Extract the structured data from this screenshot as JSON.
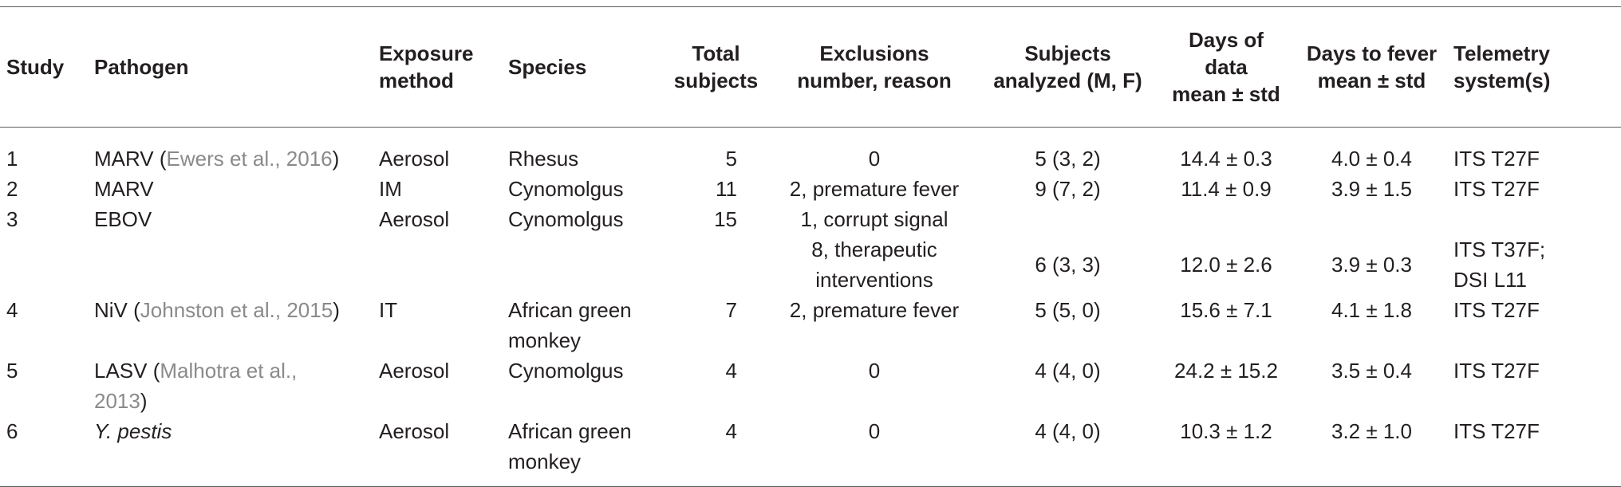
{
  "headers": {
    "study": [
      "Study"
    ],
    "pathogen": [
      "Pathogen"
    ],
    "exposure": [
      "Exposure",
      "method"
    ],
    "species": [
      "Species"
    ],
    "total": [
      "Total",
      "subjects"
    ],
    "exclusions": [
      "Exclusions",
      "number, reason"
    ],
    "subjects": [
      "Subjects",
      "analyzed (M, F)"
    ],
    "days": [
      "Days of",
      "data",
      "mean ± std"
    ],
    "fever": [
      "Days to fever",
      "mean ± std"
    ],
    "telemetry": [
      "Telemetry",
      "system(s)"
    ]
  },
  "rows": [
    {
      "study": "1",
      "pathogen": "MARV (",
      "pathogen_cite": "Ewers et al., 2016",
      "pathogen_tail": ")",
      "exposure": "Aerosol",
      "species": [
        "Rhesus"
      ],
      "total": "5",
      "exclusions": [
        "0"
      ],
      "subjects": "5 (3, 2)",
      "days": "14.4 ± 0.3",
      "fever": "4.0 ± 0.4",
      "telemetry": [
        "ITS T27F"
      ]
    },
    {
      "study": "2",
      "pathogen": "MARV",
      "exposure": "IM",
      "species": [
        "Cynomolgus"
      ],
      "total": "11",
      "exclusions": [
        "2, premature fever"
      ],
      "subjects": "9 (7, 2)",
      "days": "11.4 ± 0.9",
      "fever": "3.9 ± 1.5",
      "telemetry": [
        "ITS T27F"
      ]
    },
    {
      "study": "3",
      "pathogen": "EBOV",
      "exposure": "Aerosol",
      "species": [
        "Cynomolgus"
      ],
      "total": "15",
      "exclusions": [
        "1, corrupt signal",
        "8, therapeutic",
        "interventions"
      ],
      "subjects": "6 (3, 3)",
      "days": "12.0 ± 2.6",
      "fever": "3.9 ± 0.3",
      "telemetry": [
        "ITS T37F;",
        "DSI L11"
      ]
    },
    {
      "study": "4",
      "pathogen": "NiV (",
      "pathogen_cite": "Johnston et al., 2015",
      "pathogen_tail": ")",
      "exposure": "IT",
      "species": [
        "African green",
        "monkey"
      ],
      "total": "7",
      "exclusions": [
        "2, premature fever"
      ],
      "subjects": "5 (5, 0)",
      "days": "15.6 ± 7.1",
      "fever": "4.1 ± 1.8",
      "telemetry": [
        "ITS T27F"
      ]
    },
    {
      "study": "5",
      "pathogen": "LASV (",
      "pathogen_cite": "Malhotra et al.,",
      "pathogen_cite2": "2013",
      "pathogen_tail": ")",
      "exposure": "Aerosol",
      "species": [
        "Cynomolgus"
      ],
      "total": "4",
      "exclusions": [
        "0"
      ],
      "subjects": "4 (4, 0)",
      "days": "24.2 ± 15.2",
      "fever": "3.5 ± 0.4",
      "telemetry": [
        "ITS T27F"
      ]
    },
    {
      "study": "6",
      "pathogen": "Y. pestis",
      "exposure": "Aerosol",
      "species": [
        "African green",
        "monkey"
      ],
      "total": "4",
      "exclusions": [
        "0"
      ],
      "subjects": "4 (4, 0)",
      "days": "10.3 ± 1.2",
      "fever": "3.2 ± 1.0",
      "telemetry": [
        "ITS T27F"
      ]
    }
  ]
}
